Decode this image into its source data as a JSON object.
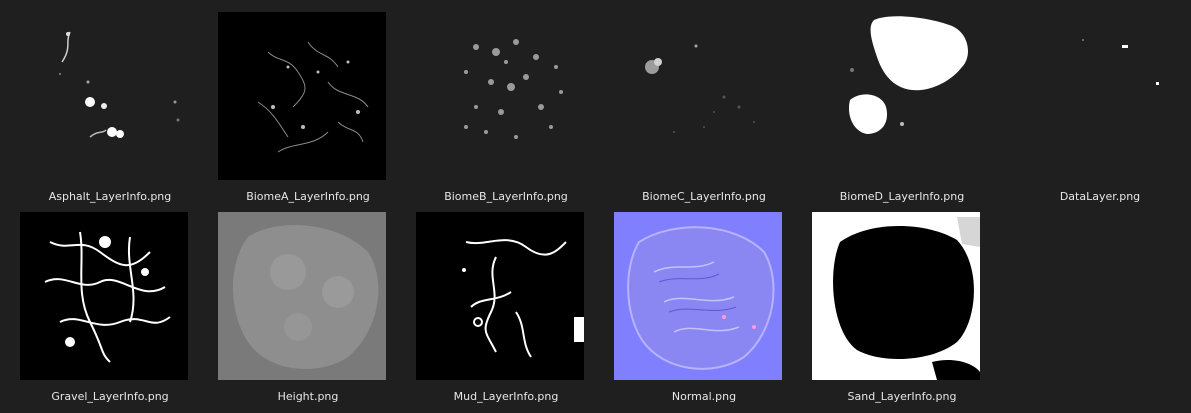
{
  "files": [
    {
      "name": "Asphalt_LayerInfo.png",
      "icon": "asphalt-texture"
    },
    {
      "name": "BiomeA_LayerInfo.png",
      "icon": "biome-a-texture"
    },
    {
      "name": "BiomeB_LayerInfo.png",
      "icon": "biome-b-texture"
    },
    {
      "name": "BiomeC_LayerInfo.png",
      "icon": "biome-c-texture"
    },
    {
      "name": "BiomeD_LayerInfo.png",
      "icon": "biome-d-texture"
    },
    {
      "name": "DataLayer.png",
      "icon": "data-layer-texture"
    },
    {
      "name": "Gravel_LayerInfo.png",
      "icon": "gravel-texture"
    },
    {
      "name": "Height.png",
      "icon": "height-map"
    },
    {
      "name": "Mud_LayerInfo.png",
      "icon": "mud-texture"
    },
    {
      "name": "Normal.png",
      "icon": "normal-map"
    },
    {
      "name": "Sand_LayerInfo.png",
      "icon": "sand-texture"
    }
  ],
  "colors": {
    "background": "#1f1f1f",
    "caption": "#e6e6e6",
    "normal_map": "#8080ff"
  }
}
